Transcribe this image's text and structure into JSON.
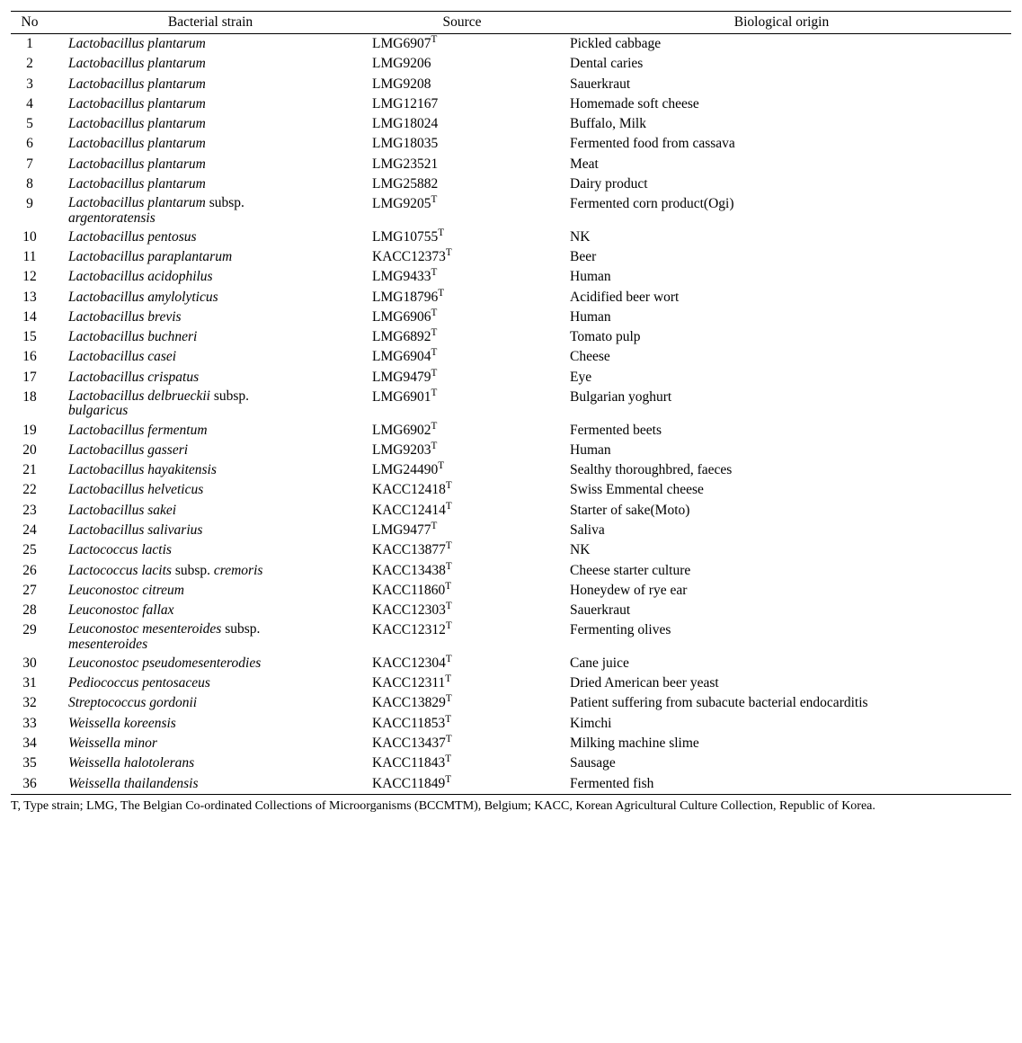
{
  "table": {
    "columns": {
      "no": "No",
      "strain": "Bacterial strain",
      "source": "Source",
      "origin": "Biological origin"
    },
    "col_widths": {
      "no": 42,
      "strain": 360,
      "source": 200
    },
    "font_family": "Georgia, Times New Roman, serif",
    "font_size_pt": 12,
    "border_color": "#000000",
    "text_color": "#000000",
    "background_color": "#ffffff",
    "rows": [
      {
        "no": "1",
        "genus": "Lactobacillus plantarum",
        "subsp": "",
        "source": "LMG6907",
        "type": true,
        "origin": "Pickled cabbage"
      },
      {
        "no": "2",
        "genus": "Lactobacillus plantarum",
        "subsp": "",
        "source": "LMG9206",
        "type": false,
        "origin": "Dental caries"
      },
      {
        "no": "3",
        "genus": "Lactobacillus plantarum",
        "subsp": "",
        "source": "LMG9208",
        "type": false,
        "origin": "Sauerkraut"
      },
      {
        "no": "4",
        "genus": "Lactobacillus plantarum",
        "subsp": "",
        "source": "LMG12167",
        "type": false,
        "origin": "Homemade soft cheese"
      },
      {
        "no": "5",
        "genus": "Lactobacillus plantarum",
        "subsp": "",
        "source": "LMG18024",
        "type": false,
        "origin": "Buffalo, Milk"
      },
      {
        "no": "6",
        "genus": "Lactobacillus plantarum",
        "subsp": "",
        "source": "LMG18035",
        "type": false,
        "origin": "Fermented food from cassava"
      },
      {
        "no": "7",
        "genus": "Lactobacillus plantarum",
        "subsp": "",
        "source": "LMG23521",
        "type": false,
        "origin": "Meat"
      },
      {
        "no": "8",
        "genus": "Lactobacillus plantarum",
        "subsp": "",
        "source": "LMG25882",
        "type": false,
        "origin": "Dairy product"
      },
      {
        "no": "9",
        "genus": "Lactobacillus plantarum",
        "subsp_label": "subsp.",
        "subsp": "argentoratensis",
        "source": "LMG9205",
        "type": true,
        "origin": "Fermented corn product(Ogi)"
      },
      {
        "no": "10",
        "genus": "Lactobacillus pentosus",
        "subsp": "",
        "source": "LMG10755",
        "type": true,
        "origin": "NK"
      },
      {
        "no": "11",
        "genus": "Lactobacillus paraplantarum",
        "subsp": "",
        "source": "KACC12373",
        "type": true,
        "origin": "Beer"
      },
      {
        "no": "12",
        "genus": "Lactobacillus acidophilus",
        "subsp": "",
        "source": "LMG9433",
        "type": true,
        "origin": "Human"
      },
      {
        "no": "13",
        "genus": "Lactobacillus amylolyticus",
        "subsp": "",
        "source": "LMG18796",
        "type": true,
        "origin": "Acidified beer wort"
      },
      {
        "no": "14",
        "genus": "Lactobacillus brevis",
        "subsp": "",
        "source": "LMG6906",
        "type": true,
        "origin": "Human"
      },
      {
        "no": "15",
        "genus": "Lactobacillus buchneri",
        "subsp": "",
        "source": "LMG6892",
        "type": true,
        "origin": "Tomato pulp"
      },
      {
        "no": "16",
        "genus": "Lactobacillus casei",
        "subsp": "",
        "source": "LMG6904",
        "type": true,
        "origin": "Cheese"
      },
      {
        "no": "17",
        "genus": "Lactobacillus crispatus",
        "subsp": "",
        "source": "LMG9479",
        "type": true,
        "origin": "Eye"
      },
      {
        "no": "18",
        "genus": "Lactobacillus delbrueckii",
        "subsp_label": "subsp.",
        "subsp": "bulgaricus",
        "source": "LMG6901",
        "type": true,
        "origin": "Bulgarian yoghurt"
      },
      {
        "no": "19",
        "genus": "Lactobacillus fermentum",
        "subsp": "",
        "source": "LMG6902",
        "type": true,
        "origin": "Fermented beets"
      },
      {
        "no": "20",
        "genus": "Lactobacillus gasseri",
        "subsp": "",
        "source": "LMG9203",
        "type": true,
        "origin": "Human"
      },
      {
        "no": "21",
        "genus": "Lactobacillus hayakitensis",
        "subsp": "",
        "source": "LMG24490",
        "type": true,
        "origin": "Sealthy thoroughbred, faeces"
      },
      {
        "no": "22",
        "genus": "Lactobacillus helveticus",
        "subsp": "",
        "source": "KACC12418",
        "type": true,
        "origin": "Swiss Emmental cheese"
      },
      {
        "no": "23",
        "genus": "Lactobacillus sakei",
        "subsp": "",
        "source": "KACC12414",
        "type": true,
        "origin": "Starter of sake(Moto)"
      },
      {
        "no": "24",
        "genus": "Lactobacillus salivarius",
        "subsp": "",
        "source": "LMG9477",
        "type": true,
        "origin": "Saliva"
      },
      {
        "no": "25",
        "genus": "Lactococcus lactis",
        "subsp": "",
        "source": "KACC13877",
        "type": true,
        "origin": "NK"
      },
      {
        "no": "26",
        "genus": "Lactococcus lacits",
        "subsp_label": "subsp.",
        "subsp_inline": "cremoris",
        "source": "KACC13438",
        "type": true,
        "origin": "Cheese starter culture"
      },
      {
        "no": "27",
        "genus": "Leuconostoc citreum",
        "subsp": "",
        "source": "KACC11860",
        "type": true,
        "origin": "Honeydew of rye ear"
      },
      {
        "no": "28",
        "genus": "Leuconostoc fallax",
        "subsp": "",
        "source": "KACC12303",
        "type": true,
        "origin": "Sauerkraut"
      },
      {
        "no": "29",
        "genus": "Leuconostoc mesenteroides",
        "subsp_label": "subsp.",
        "subsp": "mesenteroides",
        "source": "KACC12312",
        "type": true,
        "origin": "Fermenting olives"
      },
      {
        "no": "30",
        "genus": "Leuconostoc pseudomesenterodies",
        "subsp": "",
        "source": "KACC12304",
        "type": true,
        "origin": "Cane juice"
      },
      {
        "no": "31",
        "genus": "Pediococcus pentosaceus",
        "subsp": "",
        "source": "KACC12311",
        "type": true,
        "origin": "Dried American beer yeast"
      },
      {
        "no": "32",
        "genus": "Streptococcus gordonii",
        "subsp": "",
        "source": "KACC13829",
        "type": true,
        "origin": "Patient suffering from subacute bacterial endocarditis"
      },
      {
        "no": "33",
        "genus": "Weissella koreensis",
        "subsp": "",
        "source": "KACC11853",
        "type": true,
        "origin": "Kimchi"
      },
      {
        "no": "34",
        "genus": "Weissella minor",
        "subsp": "",
        "source": "KACC13437",
        "type": true,
        "origin": "Milking machine slime"
      },
      {
        "no": "35",
        "genus": "Weissella halotolerans",
        "subsp": "",
        "source": "KACC11843",
        "type": true,
        "origin": "Sausage"
      },
      {
        "no": "36",
        "genus": "Weissella thailandensis",
        "subsp": "",
        "source": "KACC11849",
        "type": true,
        "origin": "Fermented fish"
      }
    ]
  },
  "footnote": "T, Type strain; LMG, The Belgian Co-ordinated Collections of Microorganisms (BCCMTM), Belgium; KACC, Korean Agricultural Culture Collection, Republic of Korea."
}
